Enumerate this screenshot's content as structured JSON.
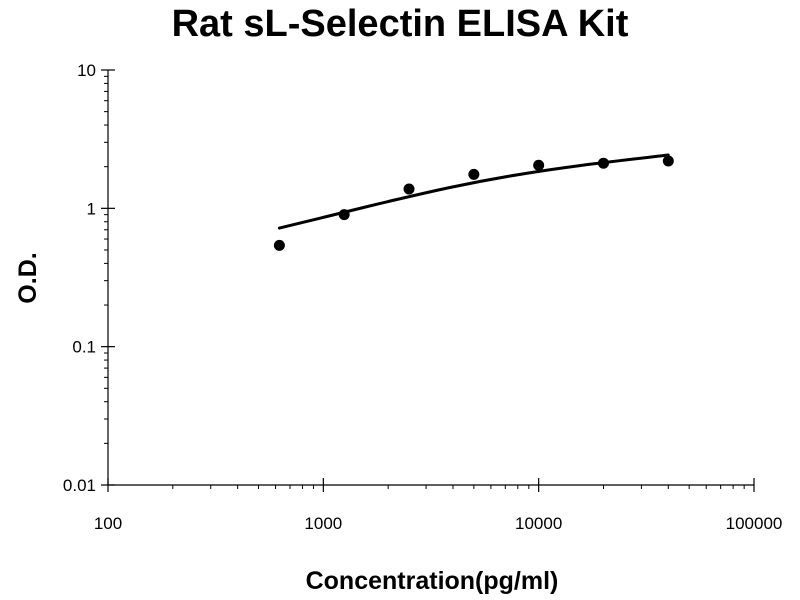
{
  "chart_data": {
    "type": "scatter",
    "title": "Rat sL-Selectin ELISA Kit",
    "xlabel": "Concentration(pg/ml)",
    "ylabel": "O.D.",
    "x_scale": "log",
    "y_scale": "log",
    "xlim": [
      100,
      100000
    ],
    "ylim": [
      0.01,
      10
    ],
    "x_ticks": [
      "100",
      "1000",
      "10000",
      "100000"
    ],
    "y_ticks": [
      "10",
      "1",
      "0.1",
      "0.01"
    ],
    "grid": false,
    "legend": "none",
    "series": [
      {
        "type": "scatter",
        "x": [
          625,
          1250,
          2500,
          5000,
          10000,
          20000,
          40000
        ],
        "y": [
          0.54,
          0.9,
          1.38,
          1.76,
          2.05,
          2.12,
          2.2
        ],
        "color": "#000000"
      },
      {
        "type": "line",
        "x": [
          625,
          1000,
          2000,
          4000,
          8000,
          16000,
          40000
        ],
        "y": [
          0.72,
          0.86,
          1.12,
          1.43,
          1.75,
          2.05,
          2.43
        ],
        "color": "#000000"
      }
    ]
  }
}
